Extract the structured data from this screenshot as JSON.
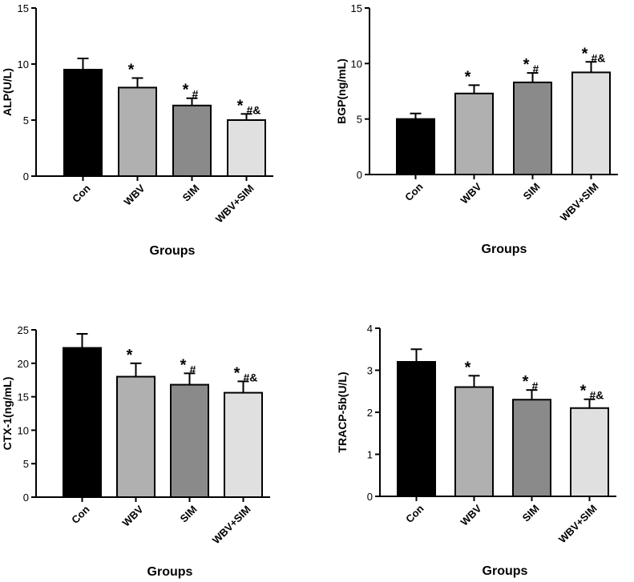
{
  "chart_data": [
    {
      "type": "bar",
      "ylabel": "ALP(U/L)",
      "xlabel": "Groups",
      "ylim": [
        0,
        15
      ],
      "yticks": [
        0,
        5,
        10,
        15
      ],
      "categories": [
        "Con",
        "WBV",
        "SIM",
        "WBV+SIM"
      ],
      "values": [
        9.5,
        7.9,
        6.3,
        5.0
      ],
      "errors": [
        1.0,
        0.85,
        0.65,
        0.55
      ],
      "annotations": [
        "",
        "*",
        "*#",
        "*#&"
      ],
      "colors": [
        "#000000",
        "#b0b0b0",
        "#8a8a8a",
        "#e0e0e0"
      ]
    },
    {
      "type": "bar",
      "ylabel": "BGP(ng/mL)",
      "xlabel": "Groups",
      "ylim": [
        0,
        15
      ],
      "yticks": [
        0,
        5,
        10,
        15
      ],
      "categories": [
        "Con",
        "WBV",
        "SIM",
        "WBV+SIM"
      ],
      "values": [
        5.0,
        7.3,
        8.3,
        9.2
      ],
      "errors": [
        0.5,
        0.75,
        0.85,
        0.95
      ],
      "annotations": [
        "",
        "*",
        "*#",
        "*#&"
      ],
      "colors": [
        "#000000",
        "#b0b0b0",
        "#8a8a8a",
        "#e0e0e0"
      ]
    },
    {
      "type": "bar",
      "ylabel": "CTX-1(ng/mL)",
      "xlabel": "Groups",
      "ylim": [
        0,
        25
      ],
      "yticks": [
        0,
        5,
        10,
        15,
        20,
        25
      ],
      "categories": [
        "Con",
        "WBV",
        "SIM",
        "WBV+SIM"
      ],
      "values": [
        22.3,
        18.0,
        16.8,
        15.6
      ],
      "errors": [
        2.1,
        2.0,
        1.7,
        1.7
      ],
      "annotations": [
        "",
        "*",
        "*#",
        "*#&"
      ],
      "colors": [
        "#000000",
        "#b0b0b0",
        "#8a8a8a",
        "#e0e0e0"
      ]
    },
    {
      "type": "bar",
      "ylabel": "TRACP-5b(U/L)",
      "xlabel": "Groups",
      "ylim": [
        0,
        4
      ],
      "yticks": [
        0,
        1,
        2,
        3,
        4
      ],
      "categories": [
        "Con",
        "WBV",
        "SIM",
        "WBV+SIM"
      ],
      "values": [
        3.2,
        2.6,
        2.3,
        2.1
      ],
      "errors": [
        0.3,
        0.27,
        0.23,
        0.21
      ],
      "annotations": [
        "",
        "*",
        "*#",
        "*#&"
      ],
      "colors": [
        "#000000",
        "#b0b0b0",
        "#8a8a8a",
        "#e0e0e0"
      ]
    }
  ]
}
